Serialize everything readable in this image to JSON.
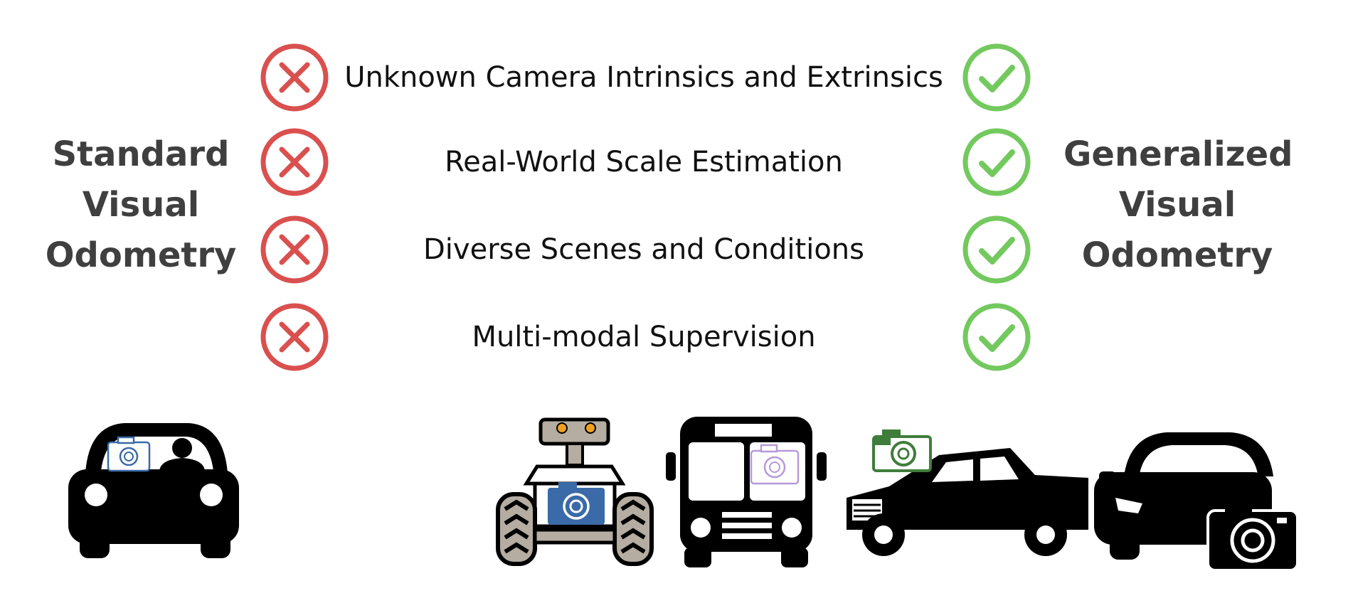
{
  "colors": {
    "text": "#111111",
    "title": "#3f3f3f",
    "cross": "#d9504e",
    "check": "#73c95e",
    "vehicle": "#000000",
    "camera_blue": "#3a6aa8",
    "camera_green": "#3f7d3a",
    "camera_pastel": "#b59ad9",
    "robot_grey": "#b5ada2",
    "robot_orange": "#f0a020"
  },
  "left_title": {
    "lines": [
      "Standard",
      "Visual",
      "Odometry"
    ]
  },
  "right_title": {
    "lines": [
      "Generalized",
      "Visual",
      "Odometry"
    ]
  },
  "features": [
    {
      "label": "Unknown Camera Intrinsics and Extrinsics",
      "standard": "cross-icon",
      "generalized": "check-icon"
    },
    {
      "label": "Real-World Scale Estimation",
      "standard": "cross-icon",
      "generalized": "check-icon"
    },
    {
      "label": "Diverse Scenes and Conditions",
      "standard": "cross-icon",
      "generalized": "check-icon"
    },
    {
      "label": "Multi-modal Supervision",
      "standard": "cross-icon",
      "generalized": "check-icon"
    }
  ],
  "vehicles": [
    {
      "icon": "car-front-with-dash-camera-icon",
      "group": "standard"
    },
    {
      "icon": "robot-with-camera-icon",
      "group": "generalized"
    },
    {
      "icon": "bus-with-camera-icon",
      "group": "generalized"
    },
    {
      "icon": "pickup-truck-with-camera-icon",
      "group": "generalized"
    },
    {
      "icon": "car-front-with-camera-icon",
      "group": "generalized"
    }
  ]
}
